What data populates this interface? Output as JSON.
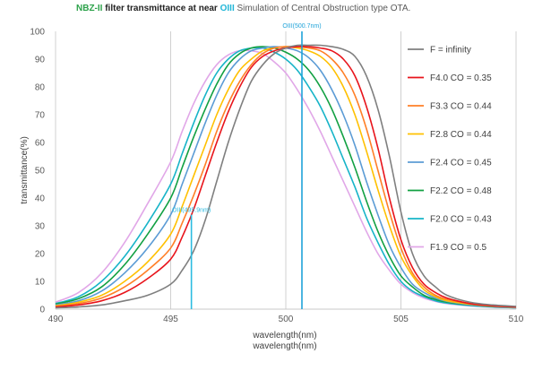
{
  "header": {
    "part1": "NBZ-II",
    "part2": " filter transmittance at near ",
    "part3": "OIII",
    "part4": "   Simulation of Central Obstruction type OTA."
  },
  "chart_data": {
    "type": "line",
    "xlabel": "wavelength(nm)",
    "xlabel2": "wavelength(nm)",
    "ylabel": "transmittance(%)",
    "xlim": [
      490,
      510
    ],
    "ylim": [
      0,
      100
    ],
    "xticks": [
      490,
      495,
      500,
      505,
      510
    ],
    "yticks": [
      0,
      10,
      20,
      30,
      40,
      50,
      60,
      70,
      80,
      90,
      100
    ],
    "grid": "vertical",
    "legend_position": "right",
    "series": [
      {
        "name": "F = infinity",
        "color": "#7f7f7f",
        "x": [
          490,
          491,
          492,
          493,
          494,
          495,
          495.5,
          496,
          496.5,
          497,
          497.5,
          498,
          498.5,
          499,
          499.5,
          500,
          500.5,
          501,
          501.5,
          502,
          502.5,
          503,
          503.5,
          504,
          504.5,
          505,
          505.5,
          506,
          506.5,
          507,
          508,
          509,
          510
        ],
        "values": [
          0.5,
          0.8,
          1.5,
          3,
          5,
          9,
          14,
          21,
          32,
          46,
          60,
          72,
          82,
          88,
          92,
          94,
          95,
          95,
          95,
          94.5,
          93.5,
          91,
          84,
          72,
          55,
          35,
          20,
          12,
          8,
          5,
          2.5,
          1.5,
          1
        ]
      },
      {
        "name": "F4.0 CO = 0.35",
        "color": "#e8141b",
        "x": [
          490,
          491,
          492,
          493,
          494,
          495,
          495.5,
          496,
          496.5,
          497,
          497.5,
          498,
          498.5,
          499,
          499.5,
          500,
          500.5,
          501,
          501.5,
          502,
          502.5,
          503,
          503.5,
          504,
          504.5,
          505,
          505.5,
          506,
          506.5,
          507,
          508,
          509,
          510
        ],
        "values": [
          0.8,
          1.5,
          3,
          6,
          11,
          18,
          26,
          36,
          48,
          60,
          71,
          80,
          87,
          91,
          93,
          94,
          94.5,
          94.5,
          94,
          93,
          90,
          84,
          73,
          58,
          40,
          25,
          15,
          9,
          6,
          4,
          2,
          1.2,
          0.8
        ]
      },
      {
        "name": "F3.3 CO = 0.44",
        "color": "#ff7f27",
        "x": [
          490,
          491,
          492,
          493,
          494,
          495,
          495.5,
          496,
          496.5,
          497,
          497.5,
          498,
          498.5,
          499,
          499.5,
          500,
          500.5,
          501,
          501.5,
          502,
          502.5,
          503,
          503.5,
          504,
          504.5,
          505,
          505.5,
          506,
          506.5,
          507,
          508,
          509,
          510
        ],
        "values": [
          1,
          2,
          4,
          8,
          14,
          22,
          31,
          41,
          52,
          64,
          74,
          82,
          88,
          92,
          94,
          94.5,
          94.5,
          94,
          93,
          90,
          85,
          77,
          65,
          50,
          35,
          22,
          13,
          8,
          5,
          3.5,
          2,
          1.2,
          0.8
        ]
      },
      {
        "name": "F2.8 CO = 0.44",
        "color": "#ffc000",
        "x": [
          490,
          491,
          492,
          493,
          494,
          495,
          495.5,
          496,
          496.5,
          497,
          497.5,
          498,
          498.5,
          499,
          499.5,
          500,
          500.5,
          501,
          501.5,
          502,
          502.5,
          503,
          503.5,
          504,
          504.5,
          505,
          505.5,
          506,
          506.5,
          507,
          508,
          509,
          510
        ],
        "values": [
          1.2,
          2.5,
          5,
          10,
          17,
          27,
          37,
          48,
          59,
          70,
          79,
          86,
          90,
          93,
          94,
          94.5,
          94,
          93,
          91,
          87,
          80,
          70,
          57,
          43,
          30,
          19,
          12,
          7,
          4.5,
          3,
          1.8,
          1.1,
          0.7
        ]
      },
      {
        "name": "F2.4 CO = 0.45",
        "color": "#5b9bd5",
        "x": [
          490,
          491,
          492,
          493,
          494,
          495,
          495.5,
          496,
          496.5,
          497,
          497.5,
          498,
          498.5,
          499,
          499.5,
          500,
          500.5,
          501,
          501.5,
          502,
          502.5,
          503,
          503.5,
          504,
          504.5,
          505,
          505.5,
          506,
          506.5,
          507,
          508,
          509,
          510
        ],
        "values": [
          1.5,
          3,
          6.5,
          13,
          22,
          34,
          45,
          56,
          67,
          77,
          85,
          90,
          93,
          94,
          94.5,
          94,
          93,
          90.5,
          86,
          79,
          70,
          59,
          46,
          34,
          23,
          15,
          9,
          6,
          4,
          2.8,
          1.6,
          1,
          0.6
        ]
      },
      {
        "name": "F2.2 CO = 0.48",
        "color": "#12a042",
        "x": [
          490,
          491,
          492,
          493,
          494,
          495,
          495.5,
          496,
          496.5,
          497,
          497.5,
          498,
          498.5,
          499,
          499.5,
          500,
          500.5,
          501,
          501.5,
          502,
          502.5,
          503,
          503.5,
          504,
          504.5,
          505,
          505.5,
          506,
          506.5,
          507,
          508,
          509,
          510
        ],
        "values": [
          1.8,
          3.8,
          8,
          16,
          27,
          40,
          51,
          62,
          72,
          81,
          88,
          92,
          94,
          94.5,
          94,
          92.5,
          90,
          86,
          80,
          72,
          62,
          51,
          39,
          28,
          19,
          12,
          8,
          5,
          3.5,
          2.5,
          1.5,
          0.9,
          0.6
        ]
      },
      {
        "name": "F2.0 CO = 0.43",
        "color": "#17b4c8",
        "x": [
          490,
          491,
          492,
          493,
          494,
          495,
          495.5,
          496,
          496.5,
          497,
          497.5,
          498,
          498.5,
          499,
          499.5,
          500,
          500.5,
          501,
          501.5,
          502,
          502.5,
          503,
          503.5,
          504,
          504.5,
          505,
          505.5,
          506,
          506.5,
          507,
          508,
          509,
          510
        ],
        "values": [
          2,
          4.5,
          10,
          19,
          31,
          45,
          56,
          67,
          77,
          85,
          90,
          93,
          94,
          94,
          92.5,
          90,
          86,
          80,
          73,
          64,
          54,
          44,
          33,
          24,
          16,
          10,
          6.5,
          4.5,
          3,
          2.2,
          1.3,
          0.8,
          0.5
        ]
      },
      {
        "name": "F1.9 CO = 0.5",
        "color": "#e1a7e8",
        "x": [
          490,
          491,
          492,
          493,
          494,
          495,
          495.5,
          496,
          496.5,
          497,
          497.5,
          498,
          498.5,
          499,
          499.5,
          500,
          500.5,
          501,
          501.5,
          502,
          502.5,
          503,
          503.5,
          504,
          504.5,
          505,
          505.5,
          506,
          506.5,
          507,
          508,
          509,
          510
        ],
        "values": [
          2.5,
          6,
          13,
          24,
          38,
          53,
          64,
          74,
          82,
          88,
          91.5,
          93,
          93,
          92,
          89,
          85,
          79,
          72,
          64,
          55,
          46,
          37,
          28,
          20,
          14,
          9,
          6,
          4,
          2.8,
          2,
          1.2,
          0.7,
          0.5
        ]
      }
    ],
    "annotations": [
      {
        "label": "OIII(500.7nm)",
        "x": 500.7,
        "y_top": 100,
        "color": "#1fa3d9"
      },
      {
        "label": "OIII(495.9nm)",
        "x": 495.9,
        "y_top": 34,
        "color": "#2bbbe0"
      }
    ]
  }
}
